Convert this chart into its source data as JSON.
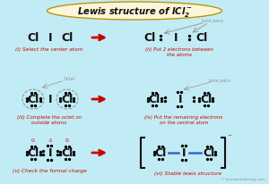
{
  "bg_color": "#c2ecf5",
  "title_bg": "#fdf5d8",
  "title_border": "#b8960c",
  "red": "#cc0000",
  "blue": "#3366cc",
  "black": "#111111",
  "gray": "#909090",
  "watermark": "© knordsilearning.com",
  "step1_label": "(i) Select the center atom",
  "step2_label": "(ii) Put 2 electrons between\nthe atoms",
  "step3_label": "(iii) Complete the octet on\noutside atoms",
  "step4_label": "(iv) Put the remaining electrons\non the central atom",
  "step5_label": "(v) Check the formal charge",
  "step6_label": "(vi) Stable lewis structure"
}
